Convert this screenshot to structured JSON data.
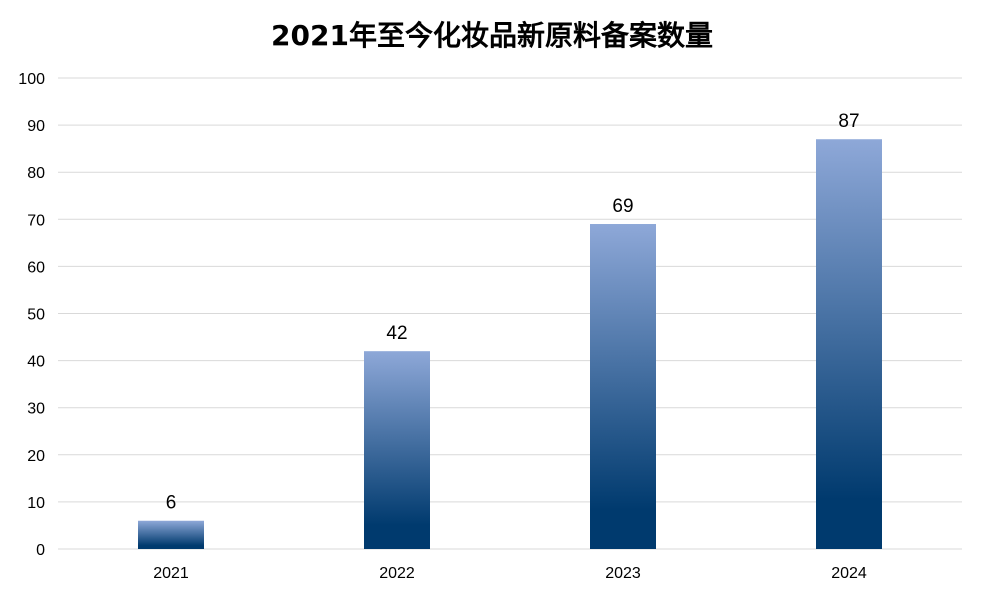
{
  "chart_data": {
    "type": "bar",
    "title": "2021年至今化妆品新原料备案数量",
    "categories": [
      "2021",
      "2022",
      "2023",
      "2024"
    ],
    "values": [
      6,
      42,
      69,
      87
    ],
    "data_labels": [
      "6",
      "42",
      "69",
      "87"
    ],
    "xlabel": "",
    "ylabel": "",
    "ylim": [
      0,
      100
    ],
    "yticks": [
      0,
      10,
      20,
      30,
      40,
      50,
      60,
      70,
      80,
      90,
      100
    ],
    "grid": true,
    "legend": "none",
    "colors": {
      "bar_top": "#8ea8d8",
      "bar_bottom": "#003a6e",
      "grid": "#d9d9d9",
      "text": "#000000"
    }
  }
}
